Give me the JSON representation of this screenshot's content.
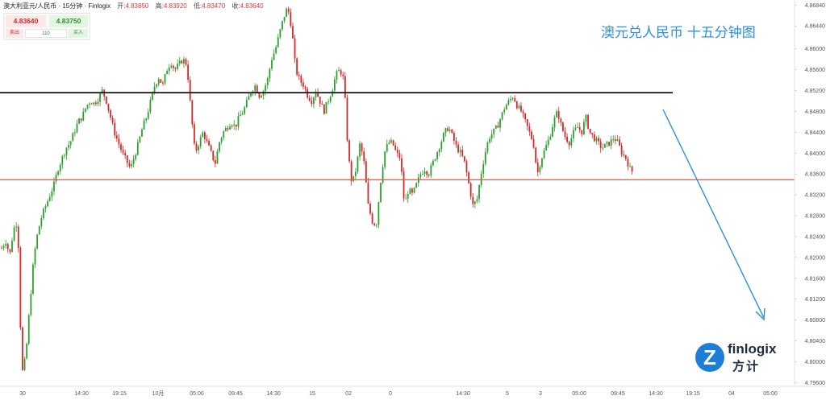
{
  "header": {
    "symbol": "澳大利亚元/人民币",
    "interval": "15分钟",
    "source": "Finlogix",
    "open_label": "开:",
    "open": "4.83850",
    "high_label": "高:",
    "high": "4.83920",
    "low_label": "低:",
    "low": "4.83470",
    "close_label": "收:",
    "close": "4.83640"
  },
  "trade_panel": {
    "sell_price": "4.83640",
    "buy_price": "4.83750",
    "sell_label": "卖出",
    "buy_label": "买入",
    "quantity": "110"
  },
  "annotation_title": "澳元兑人民币 十五分钟图",
  "logo": {
    "word": "finlogix",
    "cn": "方计",
    "mark": "Z"
  },
  "colors": {
    "up": "#2ca02c",
    "down": "#d62728",
    "resistance_line": "#000000",
    "support_line": "#e05a45",
    "arrow": "#2b8fe0"
  },
  "chart_data": {
    "type": "candlestick",
    "title": "澳元兑人民币 十五分钟图",
    "ylim": [
      4.7956,
      4.8686
    ],
    "y_ticks": [
      "4.86840",
      "4.86440",
      "4.86000",
      "4.85600",
      "4.85200",
      "4.84800",
      "4.84400",
      "4.84000",
      "4.83600",
      "4.83200",
      "4.82800",
      "4.82400",
      "4.82000",
      "4.81600",
      "4.81200",
      "4.80800",
      "4.80400",
      "4.80000",
      "4.79600"
    ],
    "x_ticks": [
      "30",
      "14:30",
      "19:15",
      "10月",
      "05:00",
      "09:45",
      "14:30",
      "15",
      "02",
      "0",
      "14:30",
      "5",
      "3",
      "05:00",
      "09:45",
      "14:30",
      "19:15",
      "04",
      "05:00"
    ],
    "resistance": 4.8516,
    "support": 4.8349,
    "approx_close_path": [
      [
        0,
        4.8218
      ],
      [
        5,
        4.8232
      ],
      [
        10,
        4.8205
      ],
      [
        15,
        4.8255
      ],
      [
        20,
        4.827
      ],
      [
        25,
        4.7975
      ],
      [
        30,
        4.801
      ],
      [
        35,
        4.811
      ],
      [
        40,
        4.82
      ],
      [
        45,
        4.825
      ],
      [
        50,
        4.828
      ],
      [
        55,
        4.83
      ],
      [
        60,
        4.832
      ],
      [
        65,
        4.834
      ],
      [
        70,
        4.837
      ],
      [
        75,
        4.839
      ],
      [
        80,
        4.841
      ],
      [
        85,
        4.842
      ],
      [
        90,
        4.844
      ],
      [
        95,
        4.846
      ],
      [
        100,
        4.847
      ],
      [
        105,
        4.849
      ],
      [
        110,
        4.85
      ],
      [
        115,
        4.8495
      ],
      [
        120,
        4.8505
      ],
      [
        125,
        4.852
      ],
      [
        130,
        4.85
      ],
      [
        135,
        4.847
      ],
      [
        140,
        4.844
      ],
      [
        145,
        4.842
      ],
      [
        150,
        4.84
      ],
      [
        155,
        4.8385
      ],
      [
        160,
        4.837
      ],
      [
        165,
        4.8395
      ],
      [
        170,
        4.842
      ],
      [
        175,
        4.845
      ],
      [
        180,
        4.847
      ],
      [
        185,
        4.85
      ],
      [
        190,
        4.853
      ],
      [
        195,
        4.8545
      ],
      [
        200,
        4.853
      ],
      [
        205,
        4.856
      ],
      [
        210,
        4.8575
      ],
      [
        215,
        4.856
      ],
      [
        220,
        4.857
      ],
      [
        225,
        4.858
      ],
      [
        230,
        4.857
      ],
      [
        235,
        4.848
      ],
      [
        240,
        4.84
      ],
      [
        245,
        4.842
      ],
      [
        250,
        4.844
      ],
      [
        255,
        4.842
      ],
      [
        260,
        4.84
      ],
      [
        265,
        4.838
      ],
      [
        270,
        4.842
      ],
      [
        275,
        4.844
      ],
      [
        280,
        4.845
      ],
      [
        285,
        4.846
      ],
      [
        290,
        4.845
      ],
      [
        295,
        4.847
      ],
      [
        300,
        4.848
      ],
      [
        305,
        4.85
      ],
      [
        310,
        4.852
      ],
      [
        315,
        4.853
      ],
      [
        320,
        4.851
      ],
      [
        325,
        4.852
      ],
      [
        330,
        4.854
      ],
      [
        335,
        4.858
      ],
      [
        340,
        4.86
      ],
      [
        345,
        4.863
      ],
      [
        350,
        4.866
      ],
      [
        355,
        4.868
      ],
      [
        360,
        4.864
      ],
      [
        365,
        4.856
      ],
      [
        370,
        4.854
      ],
      [
        375,
        4.853
      ],
      [
        380,
        4.851
      ],
      [
        385,
        4.85
      ],
      [
        390,
        4.852
      ],
      [
        395,
        4.85
      ],
      [
        400,
        4.848
      ],
      [
        405,
        4.85
      ],
      [
        410,
        4.852
      ],
      [
        415,
        4.855
      ],
      [
        420,
        4.856
      ],
      [
        425,
        4.854
      ],
      [
        430,
        4.84
      ],
      [
        435,
        4.834
      ],
      [
        440,
        4.837
      ],
      [
        445,
        4.842
      ],
      [
        450,
        4.838
      ],
      [
        455,
        4.83
      ],
      [
        460,
        4.827
      ],
      [
        465,
        4.826
      ],
      [
        470,
        4.834
      ],
      [
        475,
        4.84
      ],
      [
        480,
        4.842
      ],
      [
        485,
        4.842
      ],
      [
        490,
        4.84
      ],
      [
        495,
        4.839
      ],
      [
        500,
        4.83
      ],
      [
        505,
        4.833
      ],
      [
        510,
        4.832
      ],
      [
        515,
        4.834
      ],
      [
        520,
        4.836
      ],
      [
        525,
        4.837
      ],
      [
        530,
        4.836
      ],
      [
        535,
        4.838
      ],
      [
        540,
        4.84
      ],
      [
        545,
        4.842
      ],
      [
        550,
        4.844
      ],
      [
        555,
        4.845
      ],
      [
        560,
        4.843
      ],
      [
        565,
        4.841
      ],
      [
        570,
        4.84
      ],
      [
        575,
        4.838
      ],
      [
        580,
        4.834
      ],
      [
        585,
        4.83
      ],
      [
        590,
        4.831
      ],
      [
        595,
        4.836
      ],
      [
        600,
        4.84
      ],
      [
        605,
        4.843
      ],
      [
        610,
        4.844
      ],
      [
        615,
        4.845
      ],
      [
        620,
        4.847
      ],
      [
        625,
        4.849
      ],
      [
        630,
        4.85
      ],
      [
        635,
        4.851
      ],
      [
        640,
        4.849
      ],
      [
        645,
        4.848
      ],
      [
        650,
        4.846
      ],
      [
        655,
        4.844
      ],
      [
        660,
        4.842
      ],
      [
        665,
        4.836
      ],
      [
        670,
        4.839
      ],
      [
        675,
        4.841
      ],
      [
        680,
        4.843
      ],
      [
        685,
        4.846
      ],
      [
        690,
        4.848
      ],
      [
        695,
        4.845
      ],
      [
        700,
        4.843
      ],
      [
        705,
        4.842
      ],
      [
        710,
        4.844
      ],
      [
        715,
        4.845
      ],
      [
        720,
        4.844
      ],
      [
        725,
        4.847
      ],
      [
        730,
        4.844
      ],
      [
        735,
        4.843
      ],
      [
        740,
        4.842
      ],
      [
        745,
        4.841
      ],
      [
        750,
        4.8415
      ],
      [
        755,
        4.842
      ],
      [
        760,
        4.843
      ],
      [
        765,
        4.842
      ],
      [
        770,
        4.84
      ],
      [
        775,
        4.839
      ],
      [
        780,
        4.837
      ],
      [
        783,
        4.8364
      ]
    ]
  }
}
